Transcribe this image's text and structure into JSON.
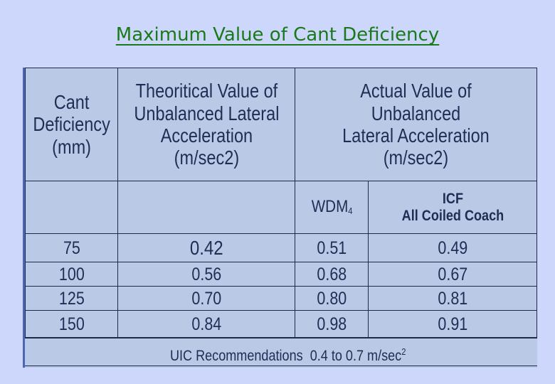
{
  "title": "Maximum Value of Cant Deficiency",
  "table": {
    "headers": {
      "col1": [
        "Cant",
        "Deficiency",
        "(mm)"
      ],
      "col2": [
        "Theoritical Value of",
        "Unbalanced Lateral",
        "Acceleration",
        "(m/sec2)"
      ],
      "col3": [
        "Actual Value of Unbalanced",
        "Lateral Acceleration",
        "(m/sec2)"
      ],
      "sub_wdm": "WDM",
      "sub_wdm_index": "4",
      "sub_icf_1": "ICF",
      "sub_icf_2": "All Coiled Coach"
    },
    "rows": [
      {
        "cant": "75",
        "theoretical": "0.42",
        "wdm4": "0.51",
        "icf": "0.49"
      },
      {
        "cant": "100",
        "theoretical": "0.56",
        "wdm4": "0.68",
        "icf": "0.67"
      },
      {
        "cant": "125",
        "theoretical": "0.70",
        "wdm4": "0.80",
        "icf": "0.81"
      },
      {
        "cant": "150",
        "theoretical": "0.84",
        "wdm4": "0.98",
        "icf": "0.91"
      }
    ]
  },
  "footer": {
    "label": "UIC Recommendations",
    "range": "0.4 to 0.7 m/sec",
    "exponent": "2"
  }
}
